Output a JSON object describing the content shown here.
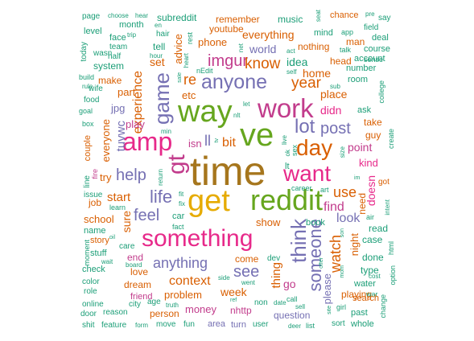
{
  "words": {
    "time": "time",
    "get": "get",
    "reddit": "reddit",
    "way": "way",
    "ve": "ve",
    "work": "work",
    "amp": "amp",
    "something": "something",
    "want": "want",
    "day": "day",
    "anyone": "anyone",
    "game": "game",
    "gt": "gt",
    "life": "life",
    "help": "help",
    "feel": "feel",
    "lot": "lot",
    "think": "think",
    "someone": "someone",
    "post": "post",
    "imgur": "imgur",
    "know": "know",
    "year": "year",
    "anything": "anything",
    "context": "context",
    "see": "see",
    "watch": "watch",
    "use": "use",
    "find": "find",
    "look": "look",
    "start": "start",
    "experience": "experience",
    "everything": "everything",
    "world": "world",
    "idea": "idea",
    "home": "home",
    "place": "place",
    "didn": "didn",
    "point": "point",
    "kind": "kind",
    "tuvwc": "tuvwc",
    "everyone": "everyone",
    "bit": "bit",
    "play": "play",
    "week": "week",
    "problem": "problem",
    "money": "money",
    "nhttp": "nhttp",
    "question": "question",
    "please": "please",
    "night": "night",
    "doesn": "doesn",
    "need": "need",
    "show": "show",
    "book": "book",
    "thing": "thing",
    "go": "go",
    "sure": "sure",
    "school": "school",
    "story": "story",
    "love": "love",
    "dream": "dream",
    "friend": "friend",
    "person": "person",
    "area": "area",
    "turn": "turn",
    "user": "user",
    "end": "end",
    "come": "come",
    "dev": "dev",
    "isn": "isn",
    "ll": "ll",
    "re": "re",
    "etc": "etc",
    "set": "set",
    "part": "part",
    "jpg": "jpg",
    "try": "try",
    "job": "job",
    "name": "name",
    "stuff": "stuff",
    "check": "check",
    "color": "color",
    "role": "role",
    "online": "online",
    "door": "door",
    "shit": "shit",
    "feature": "feature",
    "form": "form",
    "move": "move",
    "fun": "fun",
    "reason": "reason",
    "city": "city",
    "age": "age",
    "truth": "truth",
    "made": "made",
    "remember": "remember",
    "music": "music",
    "mind": "mind",
    "chance": "chance",
    "say": "say",
    "subreddit": "subreddit",
    "youtube": "youtube",
    "phone": "phone",
    "advice": "advice",
    "tell": "tell",
    "hair": "hair",
    "nothing": "nothing",
    "head": "head",
    "room": "room",
    "number": "number",
    "ask": "ask",
    "take": "take",
    "guy": "guy",
    "account": "account",
    "course": "course",
    "deal": "deal",
    "man": "man",
    "field": "field",
    "sense": "sense",
    "talk": "talk",
    "page": "page",
    "level": "level",
    "face": "face",
    "team": "team",
    "half": "half",
    "system": "system",
    "build": "build",
    "wife": "wife",
    "wasn": "wasn",
    "make": "make",
    "food": "food",
    "goal": "goal",
    "box": "box",
    "couple": "couple",
    "fire": "fire",
    "line": "line",
    "issue": "issue",
    "learn": "learn",
    "car": "car",
    "fact": "fact",
    "month": "month",
    "today": "today",
    "trip": "trip",
    "hour": "hour",
    "net": "net",
    "care": "care",
    "board": "board",
    "wait": "wait",
    "moment": "moment",
    "went": "went",
    "side": "side",
    "call": "call",
    "sell": "sell",
    "date": "date",
    "non": "non",
    "deer": "deer",
    "list": "list",
    "sort": "sort",
    "whole": "whole",
    "past": "past",
    "girl": "girl",
    "playing": "playing",
    "water": "water",
    "type": "type",
    "done": "done",
    "case": "case",
    "read": "read",
    "war": "war",
    "cost": "cost",
    "option": "option",
    "change": "change",
    "create": "create",
    "search": "search",
    "got": "got",
    "air": "air",
    "intent": "intent",
    "html": "html",
    "college": "college",
    "rest": "rest",
    "heart": "heart",
    "nEdit": "nEdit",
    "nlt": "nlt",
    "lt": "lt",
    "live": "live",
    "career": "career",
    "art": "art",
    "ok": "ok",
    "sex": "sex",
    "min": "min",
    "return": "return",
    "fit": "fit",
    "fix": "fix",
    "size": "size",
    "rule": "rule",
    "sub": "sub",
    "self": "self",
    "act": "act",
    "app": "app",
    "pre": "pre",
    "en": "en",
    "choose": "choose",
    "hear": "hear",
    "seat": "seat",
    "let": "let",
    "tv": "tv",
    "sale": "sale",
    "offer": "offer",
    "mom": "mom",
    "site": "site",
    "im": "im",
    "son": "son",
    "ref": "ref",
    "oil": "oil"
  }
}
